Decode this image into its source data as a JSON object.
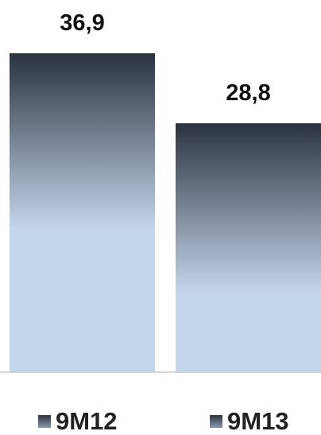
{
  "chart_data": {
    "type": "bar",
    "categories": [
      "9M12",
      "9M13"
    ],
    "series": [
      {
        "values": [
          36.9,
          28.8
        ]
      }
    ],
    "data_labels": [
      "36,9",
      "28,8"
    ],
    "legend": [
      "9M12",
      "9M13"
    ],
    "legend_position": "bottom",
    "ylim": [
      0,
      36.9
    ],
    "grid": false,
    "colors": {
      "bar_top": "#2b3340",
      "bar_bottom": "#c4d6ea",
      "axis": "#c8c8c8"
    }
  }
}
